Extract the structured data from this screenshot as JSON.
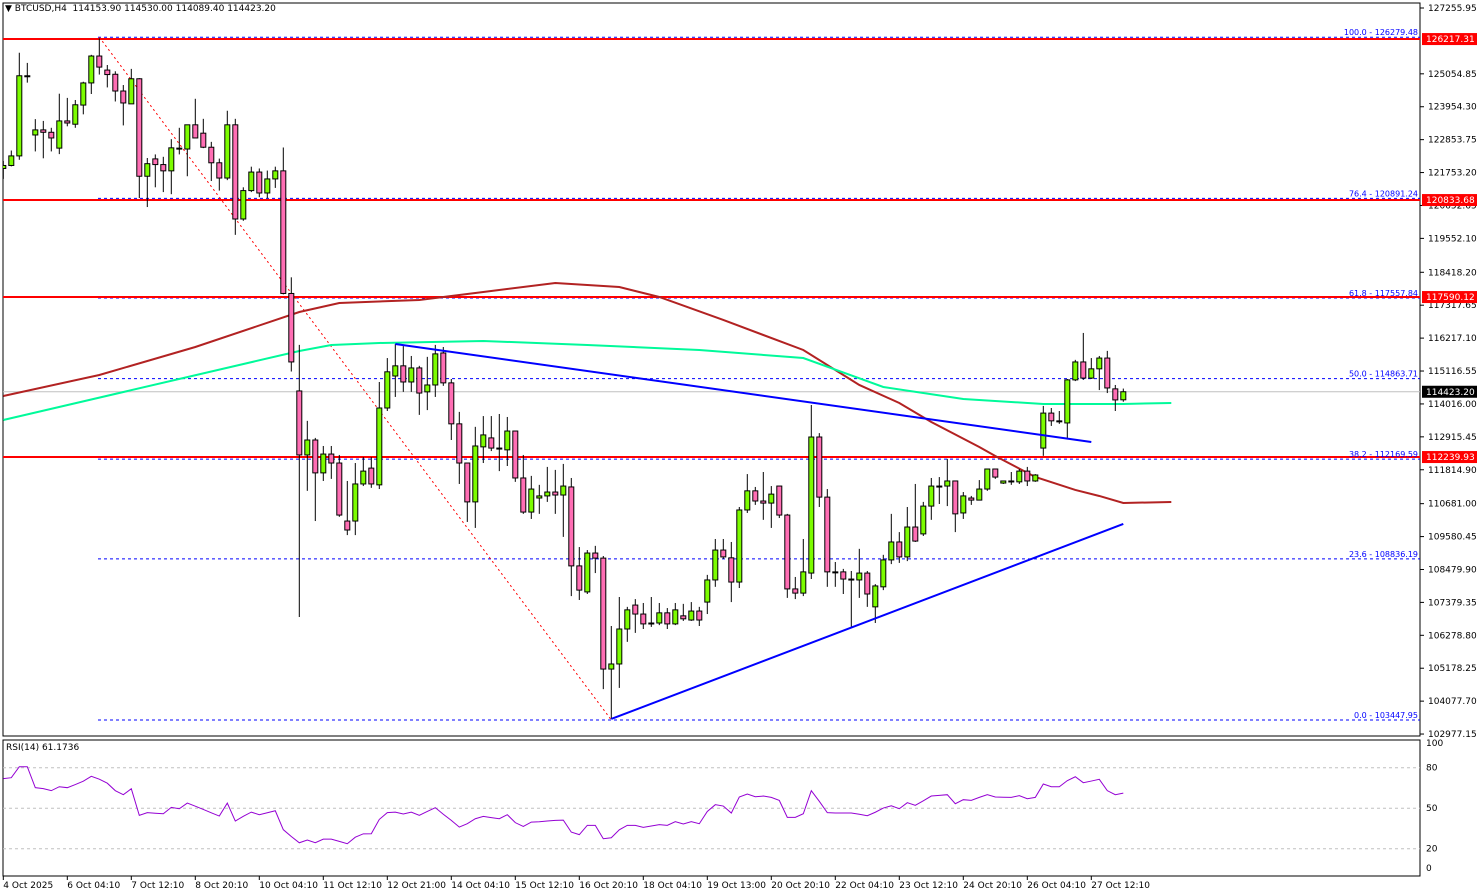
{
  "header": {
    "arrow": "▼",
    "symbol": "BTCUSD,H4",
    "open": "114153.90",
    "high": "114530.00",
    "low": "114089.40",
    "close": "114423.20"
  },
  "colors": {
    "bull": "#7cfc00",
    "bear": "#ff6eb4",
    "outline": "#000000",
    "ma_slow": "#b22222",
    "ma_fast": "#00fa9a",
    "trendline": "#0000ff",
    "level": "#ff0000",
    "fib": "#0000ff",
    "fib_diag": "#ff0000",
    "rsi": "#9400d3",
    "price_line": "#c0c0c0"
  },
  "price_axis": {
    "ticks": [
      "127255.95",
      "125054.85",
      "123954.30",
      "122853.75",
      "121753.20",
      "120652.65",
      "119552.10",
      "118418.20",
      "117317.65",
      "116217.10",
      "115116.55",
      "114016.00",
      "112915.45",
      "111814.90",
      "110681.00",
      "109580.45",
      "108479.90",
      "107379.35",
      "106278.80",
      "105178.25",
      "104077.70",
      "102977.15"
    ],
    "range": [
      102977.15,
      127255.95
    ],
    "current_price": "114423.20"
  },
  "levels": [
    "126217.31",
    "120833.68",
    "117590.12",
    "112239.93"
  ],
  "fib": [
    {
      "label": "100.0 - 126279.48",
      "price": 126279.48
    },
    {
      "label": "76.4 - 120891.24",
      "price": 120891.24
    },
    {
      "label": "61.8 - 117557.84",
      "price": 117557.84
    },
    {
      "label": "50.0 - 114863.71",
      "price": 114863.71
    },
    {
      "label": "38.2 - 112169.59",
      "price": 112169.59
    },
    {
      "label": "23.6 - 108836.19",
      "price": 108836.19
    },
    {
      "label": "0.0 - 103447.95",
      "price": 103447.95
    }
  ],
  "fib_diagonal": [
    [
      12,
      126279.48
    ],
    [
      76,
      103447.95
    ]
  ],
  "trendlines": [
    {
      "from": [
        49,
        116021
      ],
      "to": [
        136,
        112743
      ]
    },
    {
      "from": [
        76,
        103481
      ],
      "to": [
        140,
        110002
      ]
    }
  ],
  "ma_slow": [
    [
      0,
      114282
    ],
    [
      12,
      114984
    ],
    [
      24,
      115920
    ],
    [
      37,
      117090
    ],
    [
      42,
      117391
    ],
    [
      52,
      117492
    ],
    [
      60,
      117760
    ],
    [
      69,
      118060
    ],
    [
      77,
      117927
    ],
    [
      82,
      117592
    ],
    [
      90,
      116823
    ],
    [
      100,
      115820
    ],
    [
      107,
      114650
    ],
    [
      112,
      114048
    ],
    [
      116,
      113412
    ],
    [
      122,
      112576
    ],
    [
      124,
      112275
    ],
    [
      129,
      111573
    ],
    [
      134,
      111139
    ],
    [
      137,
      110938
    ],
    [
      140,
      110704
    ],
    [
      146,
      110737
    ]
  ],
  "ma_fast": [
    [
      0,
      113479
    ],
    [
      37,
      115787
    ],
    [
      41,
      115987
    ],
    [
      47,
      116054
    ],
    [
      60,
      116121
    ],
    [
      73,
      115987
    ],
    [
      87,
      115820
    ],
    [
      100,
      115552
    ],
    [
      110,
      114583
    ],
    [
      120,
      114182
    ],
    [
      130,
      114015
    ],
    [
      140,
      114015
    ],
    [
      146,
      114048
    ]
  ],
  "candles_ohlc": [
    [
      121890,
      122140,
      121540,
      121990
    ],
    [
      121990,
      122490,
      121960,
      122310
    ],
    [
      122310,
      125760,
      122180,
      124990
    ],
    [
      124990,
      125420,
      124760,
      124990
    ],
    [
      123010,
      123540,
      122460,
      123180
    ],
    [
      123180,
      123480,
      122230,
      123100
    ],
    [
      123100,
      123250,
      122460,
      122910
    ],
    [
      122570,
      124390,
      122370,
      123480
    ],
    [
      123480,
      124250,
      123300,
      123410
    ],
    [
      123370,
      124180,
      123250,
      124020
    ],
    [
      124010,
      124790,
      123700,
      124750
    ],
    [
      124750,
      125690,
      124380,
      125650
    ],
    [
      125650,
      126240,
      125030,
      125280
    ],
    [
      125180,
      125350,
      124600,
      125030
    ],
    [
      125040,
      125140,
      124130,
      124480
    ],
    [
      124480,
      124680,
      123330,
      124080
    ],
    [
      124050,
      125220,
      124050,
      124890
    ],
    [
      124890,
      124910,
      120900,
      121630
    ],
    [
      121630,
      122240,
      120600,
      122050
    ],
    [
      122210,
      122360,
      121260,
      122020
    ],
    [
      122020,
      122280,
      121100,
      121810
    ],
    [
      121810,
      122870,
      121030,
      122580
    ],
    [
      122570,
      123250,
      122360,
      122570
    ],
    [
      122540,
      123350,
      121630,
      123350
    ],
    [
      123350,
      124220,
      122910,
      122910
    ],
    [
      123070,
      123550,
      122570,
      122600
    ],
    [
      122600,
      122780,
      121470,
      122080
    ],
    [
      122080,
      122220,
      121150,
      121570
    ],
    [
      121570,
      123820,
      121500,
      123350
    ],
    [
      123350,
      123550,
      119670,
      120200
    ],
    [
      120200,
      121260,
      120140,
      121150
    ],
    [
      121150,
      121950,
      121100,
      121770
    ],
    [
      121770,
      121890,
      120930,
      121070
    ],
    [
      121070,
      121820,
      120890,
      121540
    ],
    [
      121540,
      121950,
      121240,
      121810
    ],
    [
      121810,
      122590,
      117680,
      117710
    ],
    [
      117710,
      118250,
      115100,
      115420
    ],
    [
      114450,
      115990,
      106890,
      112310
    ],
    [
      112310,
      113450,
      111110,
      112810
    ],
    [
      112810,
      112880,
      110100,
      111710
    ],
    [
      111710,
      112610,
      111440,
      112340
    ],
    [
      112340,
      112610,
      111510,
      112040
    ],
    [
      112040,
      112310,
      110240,
      110300
    ],
    [
      110100,
      111440,
      109630,
      109800
    ],
    [
      110100,
      112040,
      109630,
      111340
    ],
    [
      111340,
      112240,
      111270,
      111770
    ],
    [
      111870,
      112240,
      111210,
      111340
    ],
    [
      111310,
      114750,
      111170,
      113880
    ],
    [
      113880,
      115550,
      113780,
      115090
    ],
    [
      114950,
      116020,
      114250,
      115290
    ],
    [
      115290,
      115950,
      114420,
      114750
    ],
    [
      114750,
      115620,
      114420,
      115220
    ],
    [
      115220,
      115290,
      113650,
      114380
    ],
    [
      114420,
      115590,
      113810,
      114650
    ],
    [
      114650,
      115990,
      114250,
      115690
    ],
    [
      115720,
      115920,
      114620,
      114720
    ],
    [
      114720,
      114850,
      112810,
      113350
    ],
    [
      113350,
      113750,
      111340,
      112040
    ],
    [
      112040,
      112040,
      110070,
      110740
    ],
    [
      110740,
      113250,
      109870,
      112610
    ],
    [
      112580,
      113610,
      112040,
      112980
    ],
    [
      112880,
      113610,
      112440,
      112540
    ],
    [
      112540,
      113680,
      111770,
      112540
    ],
    [
      112480,
      113580,
      111940,
      113110
    ],
    [
      113110,
      113110,
      111410,
      111540
    ],
    [
      111540,
      112310,
      110340,
      110400
    ],
    [
      110400,
      111610,
      110170,
      111170
    ],
    [
      110870,
      111310,
      110340,
      110940
    ],
    [
      110940,
      111910,
      110740,
      111070
    ],
    [
      111070,
      111810,
      110340,
      110970
    ],
    [
      110970,
      112010,
      109570,
      111270
    ],
    [
      111240,
      111540,
      107590,
      108600
    ],
    [
      108600,
      109230,
      107460,
      107790
    ],
    [
      107730,
      109130,
      107660,
      109030
    ],
    [
      109030,
      109270,
      108360,
      108860
    ],
    [
      108860,
      108930,
      104480,
      105150
    ],
    [
      105150,
      106590,
      103480,
      105320
    ],
    [
      105320,
      107560,
      104520,
      106490
    ],
    [
      106490,
      107230,
      106060,
      107130
    ],
    [
      107290,
      107490,
      106360,
      106990
    ],
    [
      106990,
      107360,
      106490,
      106660
    ],
    [
      106690,
      107560,
      106560,
      106690
    ],
    [
      106690,
      107360,
      106620,
      107030
    ],
    [
      107030,
      107190,
      106490,
      106660
    ],
    [
      106660,
      107360,
      106620,
      107130
    ],
    [
      106930,
      107330,
      106760,
      106830
    ],
    [
      106790,
      107390,
      106760,
      107090
    ],
    [
      107090,
      107230,
      106590,
      106790
    ],
    [
      107390,
      108300,
      106990,
      108130
    ],
    [
      108130,
      109500,
      107900,
      109130
    ],
    [
      109130,
      109500,
      108830,
      108900
    ],
    [
      108870,
      109400,
      107390,
      108060
    ],
    [
      108060,
      110570,
      107860,
      110470
    ],
    [
      110470,
      111670,
      110370,
      111110
    ],
    [
      111110,
      111240,
      110640,
      110770
    ],
    [
      110770,
      111740,
      110140,
      110700
    ],
    [
      110700,
      111270,
      109870,
      111000
    ],
    [
      111270,
      111270,
      110200,
      110300
    ],
    [
      110300,
      110340,
      107530,
      107830
    ],
    [
      107830,
      108230,
      107490,
      107690
    ],
    [
      107690,
      109500,
      107590,
      108400
    ],
    [
      108360,
      113980,
      108160,
      112910
    ],
    [
      112910,
      113040,
      110570,
      110900
    ],
    [
      110900,
      111170,
      107900,
      108400
    ],
    [
      108400,
      108730,
      107900,
      108400
    ],
    [
      108400,
      108500,
      107660,
      108160
    ],
    [
      108160,
      108430,
      106560,
      108160
    ],
    [
      108130,
      109170,
      107530,
      108360
    ],
    [
      108360,
      108430,
      107230,
      107660
    ],
    [
      107230,
      107990,
      106690,
      107930
    ],
    [
      107900,
      108970,
      107790,
      108800
    ],
    [
      108800,
      110340,
      108660,
      109400
    ],
    [
      109400,
      109730,
      108700,
      108900
    ],
    [
      108900,
      110570,
      108760,
      109900
    ],
    [
      109900,
      111340,
      109400,
      109430
    ],
    [
      109670,
      110740,
      109600,
      110600
    ],
    [
      110600,
      111540,
      110140,
      111270
    ],
    [
      111270,
      111570,
      110670,
      111270
    ],
    [
      111270,
      112180,
      110600,
      111440
    ],
    [
      111440,
      111440,
      109730,
      110340
    ],
    [
      110370,
      111070,
      110170,
      110940
    ],
    [
      110870,
      110940,
      110640,
      110800
    ],
    [
      110800,
      111470,
      110800,
      111170
    ],
    [
      111170,
      111840,
      111110,
      111840
    ],
    [
      111840,
      111840,
      111510,
      111570
    ],
    [
      111370,
      111440,
      111340,
      111440
    ],
    [
      111440,
      111740,
      111310,
      111440
    ],
    [
      111410,
      111840,
      111340,
      111770
    ],
    [
      111770,
      111910,
      111270,
      111440
    ],
    [
      111440,
      111670,
      111410,
      111640
    ],
    [
      112540,
      113950,
      112280,
      113710
    ],
    [
      113710,
      113880,
      113280,
      113450
    ],
    [
      113450,
      113780,
      113350,
      113450
    ],
    [
      113380,
      114850,
      112840,
      114820
    ],
    [
      114820,
      115490,
      114780,
      115420
    ],
    [
      115420,
      116390,
      114820,
      114880
    ],
    [
      114880,
      115550,
      114850,
      115190
    ],
    [
      115190,
      115620,
      114480,
      115550
    ],
    [
      115550,
      115790,
      114380,
      114550
    ],
    [
      114520,
      114650,
      113780,
      114150
    ],
    [
      114153.9,
      114530,
      114089.4,
      114423.2
    ]
  ],
  "rsi": {
    "label": "RSI(14) 61.1736",
    "levels": [
      "100",
      "80",
      "50",
      "20",
      "0"
    ],
    "values": [
      71.9,
      72.6,
      80.7,
      80.7,
      65.2,
      64.5,
      63,
      65.9,
      65.2,
      67.5,
      70,
      73.6,
      71.5,
      68.5,
      63,
      60,
      64.4,
      44.7,
      46.7,
      46.3,
      45.9,
      50.6,
      49.6,
      53.8,
      51.5,
      49.1,
      46.6,
      44.2,
      53.8,
      40.5,
      44,
      47.1,
      45.2,
      46.6,
      48.1,
      34.1,
      29,
      24.4,
      26.4,
      24.4,
      27.1,
      27.1,
      25.4,
      23.7,
      28.5,
      31,
      31.1,
      41.7,
      46.7,
      47.1,
      45.7,
      47.1,
      44.7,
      47.6,
      50.4,
      45.5,
      41,
      36,
      38.5,
      42.2,
      43.9,
      43,
      42.2,
      45.2,
      39.3,
      36.5,
      39.7,
      40,
      40.5,
      41,
      41.2,
      32.3,
      30.4,
      37.3,
      37.3,
      27.4,
      28.1,
      34,
      37.3,
      37.3,
      35.8,
      36.8,
      37.8,
      37.3,
      40,
      38.3,
      40,
      38.5,
      47.6,
      52.6,
      51.6,
      46.4,
      58.3,
      60.5,
      58.5,
      59,
      58,
      55.8,
      43.2,
      43.2,
      45.9,
      63,
      55.1,
      46.7,
      46.4,
      46.4,
      46.4,
      45.5,
      44.4,
      47,
      50.1,
      51.8,
      49.6,
      54.1,
      52.1,
      55.5,
      59,
      59.5,
      60,
      53.3,
      56.3,
      55.8,
      58,
      60,
      58.3,
      58.1,
      58,
      59.3,
      57,
      58,
      67.9,
      65.9,
      65.9,
      70.4,
      73.3,
      68.9,
      70.1,
      71.4,
      63,
      60,
      61.17
    ]
  },
  "time_axis": [
    "4 Oct 2025",
    "6 Oct 04:10",
    "7 Oct 12:10",
    "8 Oct 20:10",
    "10 Oct 04:10",
    "11 Oct 12:10",
    "12 Oct 21:00",
    "14 Oct 04:10",
    "15 Oct 12:10",
    "16 Oct 20:10",
    "18 Oct 04:10",
    "19 Oct 13:00",
    "20 Oct 20:10",
    "22 Oct 04:10",
    "23 Oct 12:10",
    "24 Oct 20:10",
    "26 Oct 04:10",
    "27 Oct 12:10"
  ]
}
